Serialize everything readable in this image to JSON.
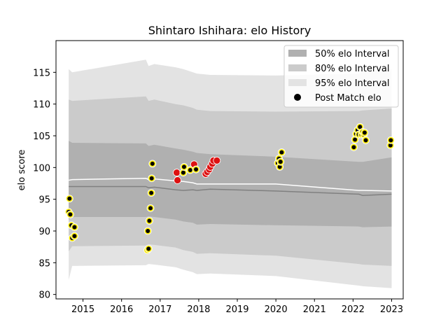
{
  "chart_data": {
    "type": "scatter",
    "title": "Shintaro Ishihara: elo History",
    "xlabel": "",
    "ylabel": "elo score",
    "xlim": [
      2014.3,
      2023.3
    ],
    "ylim": [
      79.3,
      120.0
    ],
    "xticks": [
      2015,
      2016,
      2017,
      2018,
      2019,
      2020,
      2021,
      2022,
      2023
    ],
    "yticks": [
      80,
      85,
      90,
      95,
      100,
      105,
      110,
      115
    ],
    "legend": {
      "placement": "top-right",
      "entries": [
        "50% elo Interval",
        "80% elo Interval",
        "95% elo Interval",
        "Post Match elo"
      ]
    },
    "colors": {
      "band50": "#b0b0b0",
      "band80": "#cbcbcb",
      "band95": "#e3e3e3",
      "mean_line": "#ffffff",
      "median_line": "#808080",
      "marker_fill_yellow": "#ffee00",
      "marker_fill_red": "#dd1111",
      "marker_inner": "#000000"
    },
    "bands": {
      "x": [
        2014.63,
        2014.72,
        2016.63,
        2016.7,
        2016.85,
        2017.4,
        2017.6,
        2017.85,
        2017.95,
        2018.3,
        2020.0,
        2022.15,
        2022.25,
        2023.0
      ],
      "p95_upper": [
        115.5,
        115.0,
        117.0,
        116.0,
        116.3,
        115.8,
        115.5,
        115.0,
        114.8,
        114.6,
        114.5,
        114.8,
        115.0,
        115.5
      ],
      "p95_lower": [
        82.3,
        84.5,
        84.6,
        84.8,
        84.7,
        84.3,
        83.9,
        83.5,
        83.2,
        83.3,
        82.9,
        81.4,
        81.3,
        81.0
      ],
      "p80_upper": [
        110.7,
        110.5,
        111.2,
        110.5,
        110.7,
        110.0,
        109.8,
        109.4,
        109.1,
        108.9,
        108.8,
        108.9,
        109.0,
        109.3
      ],
      "p80_lower": [
        86.8,
        87.6,
        87.7,
        87.9,
        87.8,
        87.4,
        87.0,
        86.7,
        86.4,
        86.5,
        86.1,
        84.8,
        84.7,
        84.5
      ],
      "p50_upper": [
        104.2,
        103.9,
        103.8,
        103.4,
        103.6,
        103.0,
        102.8,
        102.5,
        102.3,
        102.1,
        101.7,
        100.9,
        100.9,
        101.6
      ],
      "p50_lower": [
        91.8,
        92.2,
        92.2,
        92.3,
        92.2,
        91.8,
        91.5,
        91.3,
        91.0,
        91.1,
        90.9,
        90.7,
        90.6,
        90.7
      ],
      "mean": [
        98.0,
        98.1,
        98.3,
        98.1,
        98.2,
        97.9,
        97.8,
        97.6,
        97.4,
        97.4,
        97.4,
        96.4,
        96.4,
        96.3
      ],
      "median": [
        97.0,
        97.0,
        97.0,
        96.8,
        96.9,
        96.5,
        96.4,
        96.5,
        96.4,
        96.6,
        96.3,
        95.8,
        95.6,
        95.8
      ]
    },
    "series": [
      {
        "name": "Post Match elo",
        "points": [
          {
            "x": 2014.65,
            "y": 95.1,
            "c": "yellow"
          },
          {
            "x": 2014.63,
            "y": 93.0,
            "c": "yellow"
          },
          {
            "x": 2014.67,
            "y": 92.6,
            "c": "yellow"
          },
          {
            "x": 2014.7,
            "y": 90.9,
            "c": "yellow"
          },
          {
            "x": 2014.78,
            "y": 90.6,
            "c": "yellow"
          },
          {
            "x": 2014.72,
            "y": 88.9,
            "c": "yellow"
          },
          {
            "x": 2014.78,
            "y": 89.2,
            "c": "yellow"
          },
          {
            "x": 2016.67,
            "y": 87.0,
            "c": "yellow"
          },
          {
            "x": 2016.7,
            "y": 87.2,
            "c": "yellow"
          },
          {
            "x": 2016.68,
            "y": 90.0,
            "c": "yellow"
          },
          {
            "x": 2016.72,
            "y": 91.6,
            "c": "yellow"
          },
          {
            "x": 2016.75,
            "y": 93.6,
            "c": "yellow"
          },
          {
            "x": 2016.77,
            "y": 96.0,
            "c": "yellow"
          },
          {
            "x": 2016.78,
            "y": 98.3,
            "c": "yellow"
          },
          {
            "x": 2016.8,
            "y": 100.6,
            "c": "yellow"
          },
          {
            "x": 2017.45,
            "y": 98.0,
            "c": "red"
          },
          {
            "x": 2017.43,
            "y": 99.2,
            "c": "red"
          },
          {
            "x": 2017.6,
            "y": 99.2,
            "c": "yellow"
          },
          {
            "x": 2017.62,
            "y": 100.1,
            "c": "yellow"
          },
          {
            "x": 2017.78,
            "y": 99.6,
            "c": "yellow"
          },
          {
            "x": 2017.88,
            "y": 100.5,
            "c": "red"
          },
          {
            "x": 2017.93,
            "y": 99.7,
            "c": "yellow"
          },
          {
            "x": 2018.18,
            "y": 99.0,
            "c": "red"
          },
          {
            "x": 2018.22,
            "y": 99.3,
            "c": "red"
          },
          {
            "x": 2018.27,
            "y": 99.7,
            "c": "red"
          },
          {
            "x": 2018.3,
            "y": 100.1,
            "c": "red"
          },
          {
            "x": 2018.35,
            "y": 100.6,
            "c": "red"
          },
          {
            "x": 2018.38,
            "y": 101.1,
            "c": "red"
          },
          {
            "x": 2018.47,
            "y": 101.1,
            "c": "red"
          },
          {
            "x": 2020.05,
            "y": 100.7,
            "c": "yellow"
          },
          {
            "x": 2020.08,
            "y": 101.4,
            "c": "yellow"
          },
          {
            "x": 2020.1,
            "y": 100.1,
            "c": "yellow"
          },
          {
            "x": 2020.12,
            "y": 100.9,
            "c": "yellow"
          },
          {
            "x": 2020.15,
            "y": 102.4,
            "c": "yellow"
          },
          {
            "x": 2022.02,
            "y": 103.2,
            "c": "yellow"
          },
          {
            "x": 2022.05,
            "y": 104.4,
            "c": "yellow"
          },
          {
            "x": 2022.08,
            "y": 105.3,
            "c": "yellow"
          },
          {
            "x": 2022.12,
            "y": 105.9,
            "c": "yellow"
          },
          {
            "x": 2022.15,
            "y": 105.2,
            "c": "yellow"
          },
          {
            "x": 2022.18,
            "y": 106.4,
            "c": "yellow"
          },
          {
            "x": 2022.22,
            "y": 105.2,
            "c": "yellow"
          },
          {
            "x": 2022.25,
            "y": 105.6,
            "c": "yellow"
          },
          {
            "x": 2022.28,
            "y": 105.2,
            "c": "yellow"
          },
          {
            "x": 2022.3,
            "y": 105.5,
            "c": "yellow"
          },
          {
            "x": 2022.33,
            "y": 104.3,
            "c": "yellow"
          },
          {
            "x": 2022.97,
            "y": 103.5,
            "c": "yellow"
          },
          {
            "x": 2022.98,
            "y": 104.3,
            "c": "yellow"
          }
        ]
      }
    ]
  }
}
